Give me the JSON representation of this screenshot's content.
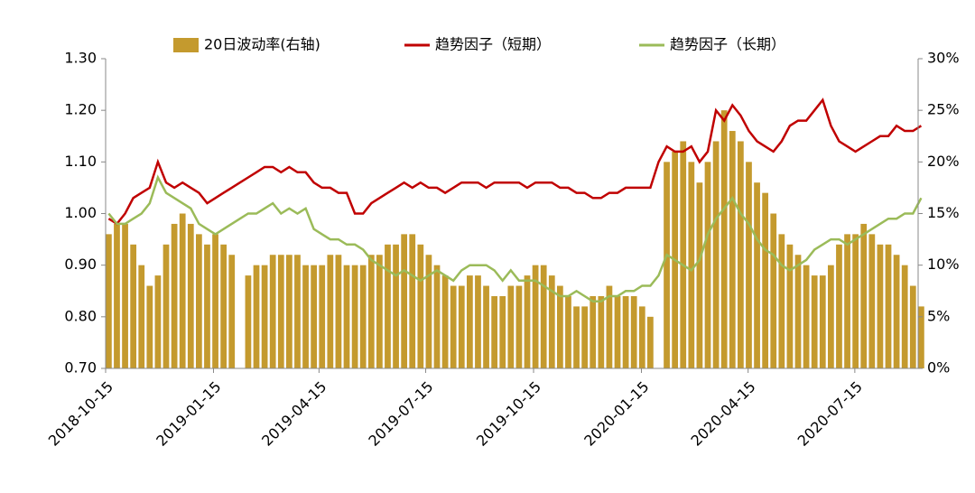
{
  "chart_data": {
    "type": "bar-line",
    "x": [
      "2018-10-15",
      "2018-10-22",
      "2018-10-29",
      "2018-11-05",
      "2018-11-12",
      "2018-11-19",
      "2018-11-26",
      "2018-12-03",
      "2018-12-10",
      "2018-12-17",
      "2018-12-24",
      "2018-12-31",
      "2019-01-07",
      "2019-01-14",
      "2019-01-21",
      "2019-01-28",
      "2019-02-04",
      "2019-02-11",
      "2019-02-18",
      "2019-02-25",
      "2019-03-04",
      "2019-03-11",
      "2019-03-18",
      "2019-03-25",
      "2019-04-01",
      "2019-04-08",
      "2019-04-15",
      "2019-04-22",
      "2019-04-29",
      "2019-05-06",
      "2019-05-13",
      "2019-05-20",
      "2019-05-27",
      "2019-06-03",
      "2019-06-10",
      "2019-06-17",
      "2019-06-24",
      "2019-07-01",
      "2019-07-08",
      "2019-07-15",
      "2019-07-22",
      "2019-07-29",
      "2019-08-05",
      "2019-08-12",
      "2019-08-19",
      "2019-08-26",
      "2019-09-02",
      "2019-09-09",
      "2019-09-16",
      "2019-09-23",
      "2019-09-30",
      "2019-10-07",
      "2019-10-14",
      "2019-10-21",
      "2019-10-28",
      "2019-11-04",
      "2019-11-11",
      "2019-11-18",
      "2019-11-25",
      "2019-12-02",
      "2019-12-09",
      "2019-12-16",
      "2019-12-23",
      "2019-12-30",
      "2020-01-06",
      "2020-01-13",
      "2020-01-20",
      "2020-01-27",
      "2020-02-03",
      "2020-02-10",
      "2020-02-17",
      "2020-02-24",
      "2020-03-02",
      "2020-03-09",
      "2020-03-16",
      "2020-03-23",
      "2020-03-30",
      "2020-04-06",
      "2020-04-13",
      "2020-04-20",
      "2020-04-27",
      "2020-05-04",
      "2020-05-11",
      "2020-05-18",
      "2020-05-25",
      "2020-06-01",
      "2020-06-08",
      "2020-06-15",
      "2020-06-22",
      "2020-06-29",
      "2020-07-06",
      "2020-07-13",
      "2020-07-20",
      "2020-07-27",
      "2020-08-03",
      "2020-08-10",
      "2020-08-17",
      "2020-08-24",
      "2020-08-31",
      "2020-09-07"
    ],
    "xlim": [
      "2018-10-15",
      "2020-09-07"
    ],
    "xticks": [
      "2018-10-15",
      "2019-01-15",
      "2019-04-15",
      "2019-07-15",
      "2019-10-15",
      "2020-01-15",
      "2020-04-15",
      "2020-07-15"
    ],
    "ylim": [
      0.7,
      1.3
    ],
    "yticks": [
      {
        "value": 0.7,
        "label": "0.70"
      },
      {
        "value": 0.8,
        "label": "0.80"
      },
      {
        "value": 0.9,
        "label": "0.90"
      },
      {
        "value": 1.0,
        "label": "1.00"
      },
      {
        "value": 1.1,
        "label": "1.10"
      },
      {
        "value": 1.2,
        "label": "1.20"
      },
      {
        "value": 1.3,
        "label": "1.30"
      }
    ],
    "y2lim": [
      0,
      30
    ],
    "y2ticks": [
      {
        "value": 0,
        "label": "0%"
      },
      {
        "value": 5,
        "label": "5%"
      },
      {
        "value": 10,
        "label": "10%"
      },
      {
        "value": 15,
        "label": "15%"
      },
      {
        "value": 20,
        "label": "20%"
      },
      {
        "value": 25,
        "label": "25%"
      },
      {
        "value": 30,
        "label": "30%"
      }
    ],
    "legend": "top",
    "series": [
      {
        "name": "20日波动率(右轴)",
        "type": "bar",
        "axis": "y2",
        "color": "#c49a2e",
        "values": [
          13,
          14,
          14,
          12,
          10,
          8,
          9,
          12,
          14,
          15,
          14,
          13,
          12,
          13,
          12,
          11,
          null,
          9,
          10,
          10,
          11,
          11,
          11,
          11,
          10,
          10,
          10,
          11,
          11,
          10,
          10,
          10,
          11,
          11,
          12,
          12,
          13,
          13,
          12,
          11,
          10,
          9,
          8,
          8,
          9,
          9,
          8,
          7,
          7,
          8,
          8,
          9,
          10,
          10,
          9,
          8,
          7,
          6,
          6,
          7,
          7,
          8,
          7,
          7,
          7,
          6,
          5,
          null,
          20,
          21,
          22,
          20,
          18,
          20,
          22,
          25,
          23,
          22,
          20,
          18,
          17,
          15,
          13,
          12,
          11,
          10,
          9,
          9,
          10,
          12,
          13,
          13,
          14,
          13,
          12,
          12,
          11,
          10,
          8,
          6
        ]
      },
      {
        "name": "趋势因子（短期）",
        "type": "line",
        "color": "#c00000",
        "values": [
          0.99,
          0.98,
          1.0,
          1.03,
          1.04,
          1.05,
          1.1,
          1.06,
          1.05,
          1.06,
          1.05,
          1.04,
          1.02,
          1.03,
          1.04,
          1.05,
          1.06,
          1.07,
          1.08,
          1.09,
          1.09,
          1.08,
          1.09,
          1.08,
          1.08,
          1.06,
          1.05,
          1.05,
          1.04,
          1.04,
          1.0,
          1.0,
          1.02,
          1.03,
          1.04,
          1.05,
          1.06,
          1.05,
          1.06,
          1.05,
          1.05,
          1.04,
          1.05,
          1.06,
          1.06,
          1.06,
          1.05,
          1.06,
          1.06,
          1.06,
          1.06,
          1.05,
          1.06,
          1.06,
          1.06,
          1.05,
          1.05,
          1.04,
          1.04,
          1.03,
          1.03,
          1.04,
          1.04,
          1.05,
          1.05,
          1.05,
          1.05,
          1.1,
          1.13,
          1.12,
          1.12,
          1.13,
          1.1,
          1.12,
          1.2,
          1.18,
          1.21,
          1.19,
          1.16,
          1.14,
          1.13,
          1.12,
          1.14,
          1.17,
          1.18,
          1.18,
          1.2,
          1.22,
          1.17,
          1.14,
          1.13,
          1.12,
          1.13,
          1.14,
          1.15,
          1.15,
          1.17,
          1.16,
          1.16,
          1.17
        ]
      },
      {
        "name": "趋势因子（长期）",
        "type": "line",
        "color": "#9bbb59",
        "values": [
          1.0,
          0.98,
          0.98,
          0.99,
          1.0,
          1.02,
          1.07,
          1.04,
          1.03,
          1.02,
          1.01,
          0.98,
          0.97,
          0.96,
          0.97,
          0.98,
          0.99,
          1.0,
          1.0,
          1.01,
          1.02,
          1.0,
          1.01,
          1.0,
          1.01,
          0.97,
          0.96,
          0.95,
          0.95,
          0.94,
          0.94,
          0.93,
          0.91,
          0.9,
          0.89,
          0.88,
          0.89,
          0.88,
          0.87,
          0.88,
          0.89,
          0.88,
          0.87,
          0.89,
          0.9,
          0.9,
          0.9,
          0.89,
          0.87,
          0.89,
          0.87,
          0.87,
          0.87,
          0.86,
          0.85,
          0.84,
          0.84,
          0.85,
          0.84,
          0.83,
          0.83,
          0.84,
          0.84,
          0.85,
          0.85,
          0.86,
          0.86,
          0.88,
          0.92,
          0.91,
          0.9,
          0.89,
          0.91,
          0.96,
          0.99,
          1.01,
          1.03,
          1.0,
          0.98,
          0.95,
          0.93,
          0.92,
          0.9,
          0.89,
          0.9,
          0.91,
          0.93,
          0.94,
          0.95,
          0.95,
          0.94,
          0.95,
          0.96,
          0.97,
          0.98,
          0.99,
          0.99,
          1.0,
          1.0,
          1.03
        ]
      }
    ]
  }
}
